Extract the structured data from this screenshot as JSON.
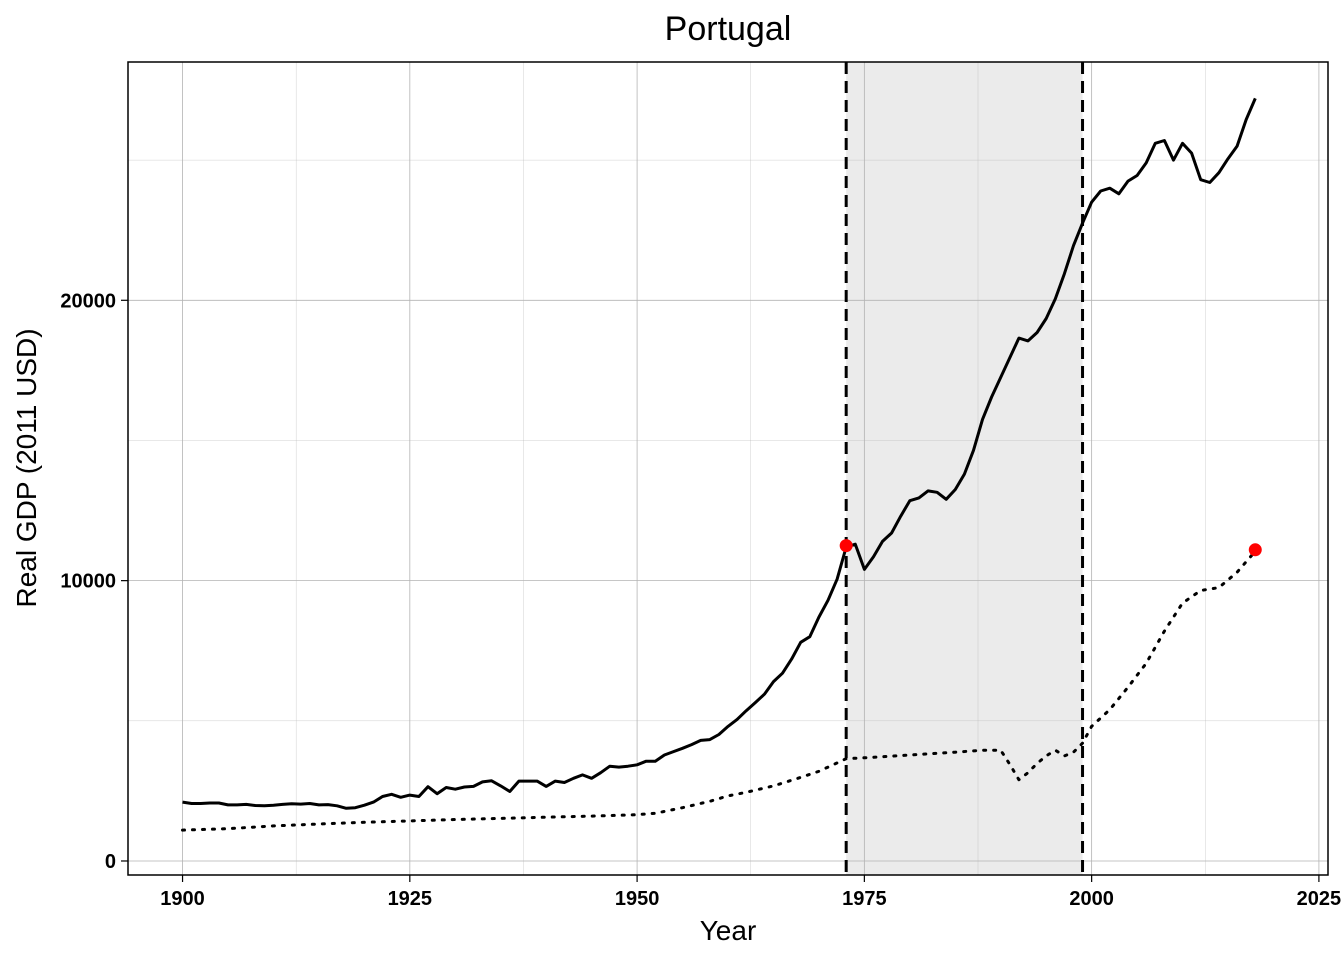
{
  "chart_data": {
    "type": "line",
    "title": "Portugal",
    "xlabel": "Year",
    "ylabel": "Real GDP (2011 USD)",
    "xlim": [
      1894,
      2026
    ],
    "ylim": [
      -500,
      28500
    ],
    "xticks": [
      1900,
      1925,
      1950,
      1975,
      2000,
      2025
    ],
    "yticks": [
      0,
      10000,
      20000
    ],
    "grid": true,
    "shaded_interval": [
      1973,
      1999
    ],
    "vlines": [
      1973,
      1999
    ],
    "colors": {
      "actual": "#000000",
      "synthetic": "#000000",
      "marker": "#ff0000",
      "shade": "#ebebeb",
      "grid": "#b3b3b3"
    },
    "series": [
      {
        "style": "solid",
        "points": [
          [
            1900,
            2100
          ],
          [
            1901,
            2050
          ],
          [
            1902,
            2050
          ],
          [
            1903,
            2070
          ],
          [
            1904,
            2070
          ],
          [
            1905,
            2000
          ],
          [
            1906,
            2000
          ],
          [
            1907,
            2020
          ],
          [
            1908,
            1980
          ],
          [
            1909,
            1970
          ],
          [
            1910,
            1990
          ],
          [
            1911,
            2020
          ],
          [
            1912,
            2040
          ],
          [
            1913,
            2030
          ],
          [
            1914,
            2050
          ],
          [
            1915,
            2000
          ],
          [
            1916,
            2010
          ],
          [
            1917,
            1970
          ],
          [
            1918,
            1880
          ],
          [
            1919,
            1900
          ],
          [
            1920,
            1990
          ],
          [
            1921,
            2100
          ],
          [
            1922,
            2300
          ],
          [
            1923,
            2380
          ],
          [
            1924,
            2270
          ],
          [
            1925,
            2350
          ],
          [
            1926,
            2300
          ],
          [
            1927,
            2650
          ],
          [
            1928,
            2400
          ],
          [
            1929,
            2620
          ],
          [
            1930,
            2560
          ],
          [
            1931,
            2640
          ],
          [
            1932,
            2660
          ],
          [
            1933,
            2820
          ],
          [
            1934,
            2860
          ],
          [
            1935,
            2680
          ],
          [
            1936,
            2480
          ],
          [
            1937,
            2850
          ],
          [
            1938,
            2850
          ],
          [
            1939,
            2850
          ],
          [
            1940,
            2660
          ],
          [
            1941,
            2850
          ],
          [
            1942,
            2800
          ],
          [
            1943,
            2950
          ],
          [
            1944,
            3070
          ],
          [
            1945,
            2950
          ],
          [
            1946,
            3150
          ],
          [
            1947,
            3380
          ],
          [
            1948,
            3350
          ],
          [
            1949,
            3380
          ],
          [
            1950,
            3430
          ],
          [
            1951,
            3560
          ],
          [
            1952,
            3560
          ],
          [
            1953,
            3780
          ],
          [
            1954,
            3900
          ],
          [
            1955,
            4020
          ],
          [
            1956,
            4150
          ],
          [
            1957,
            4300
          ],
          [
            1958,
            4330
          ],
          [
            1959,
            4510
          ],
          [
            1960,
            4800
          ],
          [
            1961,
            5050
          ],
          [
            1962,
            5360
          ],
          [
            1963,
            5650
          ],
          [
            1964,
            5950
          ],
          [
            1965,
            6400
          ],
          [
            1966,
            6700
          ],
          [
            1967,
            7200
          ],
          [
            1968,
            7800
          ],
          [
            1969,
            8000
          ],
          [
            1970,
            8700
          ],
          [
            1971,
            9300
          ],
          [
            1972,
            10050
          ],
          [
            1973,
            11200
          ],
          [
            1974,
            11300
          ],
          [
            1975,
            10400
          ],
          [
            1976,
            10850
          ],
          [
            1977,
            11400
          ],
          [
            1978,
            11700
          ],
          [
            1979,
            12300
          ],
          [
            1980,
            12850
          ],
          [
            1981,
            12950
          ],
          [
            1982,
            13200
          ],
          [
            1983,
            13150
          ],
          [
            1984,
            12900
          ],
          [
            1985,
            13250
          ],
          [
            1986,
            13800
          ],
          [
            1987,
            14650
          ],
          [
            1988,
            15750
          ],
          [
            1989,
            16550
          ],
          [
            1990,
            17250
          ],
          [
            1991,
            17950
          ],
          [
            1992,
            18650
          ],
          [
            1993,
            18550
          ],
          [
            1994,
            18850
          ],
          [
            1995,
            19350
          ],
          [
            1996,
            20050
          ],
          [
            1997,
            20950
          ],
          [
            1998,
            21950
          ],
          [
            1999,
            22750
          ],
          [
            2000,
            23500
          ],
          [
            2001,
            23900
          ],
          [
            2002,
            24000
          ],
          [
            2003,
            23800
          ],
          [
            2004,
            24250
          ],
          [
            2005,
            24450
          ],
          [
            2006,
            24900
          ],
          [
            2007,
            25600
          ],
          [
            2008,
            25700
          ],
          [
            2009,
            25000
          ],
          [
            2010,
            25600
          ],
          [
            2011,
            25250
          ],
          [
            2012,
            24300
          ],
          [
            2013,
            24200
          ],
          [
            2014,
            24550
          ],
          [
            2015,
            25050
          ],
          [
            2016,
            25500
          ],
          [
            2017,
            26450
          ],
          [
            2018,
            27200
          ]
        ]
      },
      {
        "style": "dotted",
        "points": [
          [
            1900,
            1100
          ],
          [
            1905,
            1150
          ],
          [
            1910,
            1250
          ],
          [
            1915,
            1320
          ],
          [
            1920,
            1380
          ],
          [
            1925,
            1430
          ],
          [
            1930,
            1480
          ],
          [
            1935,
            1520
          ],
          [
            1940,
            1560
          ],
          [
            1945,
            1600
          ],
          [
            1950,
            1650
          ],
          [
            1952,
            1700
          ],
          [
            1955,
            1900
          ],
          [
            1958,
            2130
          ],
          [
            1960,
            2320
          ],
          [
            1962,
            2450
          ],
          [
            1965,
            2680
          ],
          [
            1968,
            2980
          ],
          [
            1970,
            3200
          ],
          [
            1973,
            3650
          ],
          [
            1976,
            3700
          ],
          [
            1980,
            3780
          ],
          [
            1985,
            3880
          ],
          [
            1988,
            3950
          ],
          [
            1990,
            3950
          ],
          [
            1991,
            3450
          ],
          [
            1992,
            2900
          ],
          [
            1993,
            3150
          ],
          [
            1994,
            3480
          ],
          [
            1995,
            3750
          ],
          [
            1996,
            3950
          ],
          [
            1997,
            3750
          ],
          [
            1998,
            3880
          ],
          [
            1999,
            4200
          ],
          [
            2000,
            4800
          ],
          [
            2002,
            5400
          ],
          [
            2004,
            6200
          ],
          [
            2006,
            7050
          ],
          [
            2008,
            8200
          ],
          [
            2010,
            9200
          ],
          [
            2012,
            9650
          ],
          [
            2014,
            9750
          ],
          [
            2016,
            10300
          ],
          [
            2018,
            11050
          ]
        ]
      }
    ],
    "markers": [
      {
        "x": 1973,
        "y": 11250
      },
      {
        "x": 2018,
        "y": 11100
      }
    ]
  }
}
